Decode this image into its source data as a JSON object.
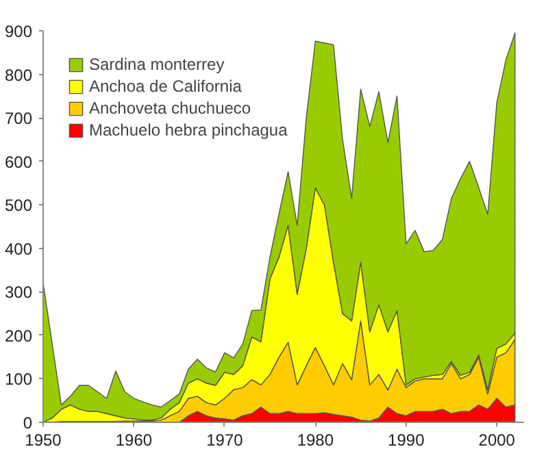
{
  "chart_data": {
    "type": "area",
    "stacked": true,
    "legend": "top left",
    "grid": false,
    "x": [
      1950,
      1951,
      1952,
      1953,
      1954,
      1955,
      1956,
      1957,
      1958,
      1959,
      1960,
      1961,
      1962,
      1963,
      1964,
      1965,
      1966,
      1967,
      1968,
      1969,
      1970,
      1971,
      1972,
      1973,
      1974,
      1975,
      1976,
      1977,
      1978,
      1979,
      1980,
      1981,
      1982,
      1983,
      1984,
      1985,
      1986,
      1987,
      1988,
      1989,
      1990,
      1991,
      1992,
      1993,
      1994,
      1995,
      1996,
      1997,
      1998,
      1999,
      2000,
      2001,
      2002
    ],
    "xlim": [
      1950,
      2003
    ],
    "xticks": [
      1950,
      1960,
      1970,
      1980,
      1990,
      2000
    ],
    "ylim": [
      0,
      900
    ],
    "yticks": [
      0,
      100,
      200,
      300,
      400,
      500,
      600,
      700,
      800,
      900
    ],
    "series": [
      {
        "name": "Machuelo hebra pinchagua",
        "color": "#ff0000",
        "values": [
          0,
          0,
          0,
          0,
          0,
          0,
          0,
          0,
          0,
          0,
          0,
          0,
          0,
          0,
          0,
          0,
          15,
          25,
          15,
          10,
          8,
          5,
          15,
          20,
          35,
          20,
          20,
          25,
          20,
          20,
          20,
          22,
          18,
          15,
          12,
          5,
          3,
          10,
          35,
          20,
          15,
          25,
          25,
          25,
          30,
          20,
          25,
          25,
          40,
          30,
          55,
          35,
          40
        ]
      },
      {
        "name": "Anchoveta chuchueco",
        "color": "#ffcc00",
        "values": [
          0,
          0,
          2,
          2,
          2,
          2,
          2,
          2,
          2,
          3,
          3,
          3,
          3,
          5,
          15,
          25,
          40,
          35,
          30,
          30,
          47,
          70,
          65,
          78,
          51,
          90,
          130,
          159,
          66,
          110,
          152,
          108,
          68,
          120,
          86,
          228,
          83,
          100,
          39,
          102,
          65,
          70,
          75,
          75,
          70,
          115,
          75,
          85,
          110,
          35,
          95,
          125,
          150
        ]
      },
      {
        "name": "Anchoa de California",
        "color": "#ffff00",
        "values": [
          0,
          10,
          28,
          38,
          28,
          23,
          23,
          18,
          13,
          7,
          5,
          2,
          2,
          5,
          15,
          20,
          35,
          40,
          45,
          45,
          60,
          35,
          50,
          98,
          99,
          220,
          230,
          269,
          208,
          270,
          367,
          370,
          282,
          115,
          135,
          135,
          122,
          160,
          134,
          135,
          6,
          5,
          4,
          8,
          10,
          5,
          8,
          5,
          5,
          10,
          20,
          20,
          15
        ]
      },
      {
        "name": "Sardina monterrey",
        "color": "#99cc00",
        "values": [
          320,
          170,
          10,
          20,
          55,
          60,
          45,
          35,
          103,
          60,
          47,
          42,
          35,
          25,
          20,
          20,
          32,
          45,
          35,
          31,
          45,
          38,
          50,
          61,
          73,
          50,
          100,
          123,
          159,
          300,
          337,
          372,
          500,
          400,
          282,
          398,
          472,
          490,
          435,
          493,
          324,
          341,
          288,
          287,
          310,
          375,
          452,
          485,
          385,
          403,
          565,
          653,
          690
        ]
      }
    ]
  }
}
